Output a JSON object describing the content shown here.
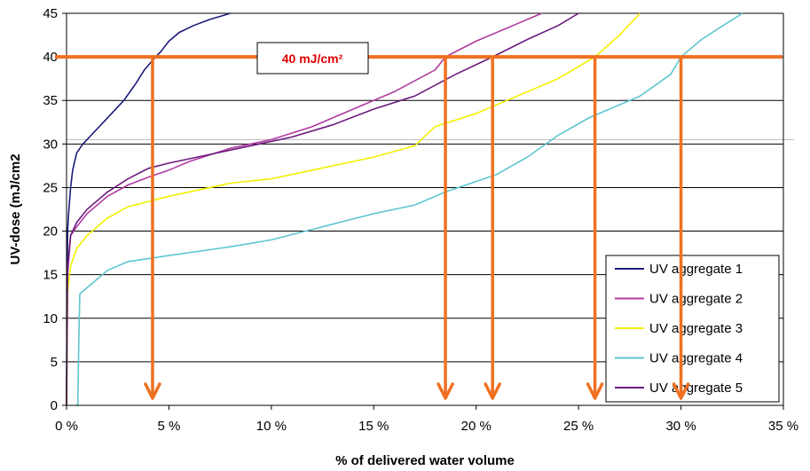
{
  "chart_data": {
    "type": "line",
    "xlabel": "% of delivered water volume",
    "ylabel": "UV-dose (mJ/cm2",
    "xlim": [
      0,
      35
    ],
    "ylim": [
      0,
      45
    ],
    "x_ticks": [
      0,
      5,
      10,
      15,
      20,
      25,
      30,
      35
    ],
    "x_tick_labels": [
      "0 %",
      "5 %",
      "10 %",
      "15 %",
      "20 %",
      "25 %",
      "30 %",
      "35 %"
    ],
    "y_ticks": [
      0,
      5,
      10,
      15,
      20,
      25,
      30,
      35,
      40,
      45
    ],
    "y_tick_labels": [
      "0",
      "5",
      "10",
      "15",
      "20",
      "25",
      "30",
      "35",
      "40",
      "45"
    ],
    "grid": "horizontal",
    "legend_position": "bottom-right",
    "series": [
      {
        "name": "UV aggregate 1",
        "color": "#1c1c7a",
        "points": [
          [
            0,
            0
          ],
          [
            0.02,
            12
          ],
          [
            0.05,
            20
          ],
          [
            0.1,
            22
          ],
          [
            0.2,
            25
          ],
          [
            0.3,
            27
          ],
          [
            0.5,
            29
          ],
          [
            0.8,
            30
          ],
          [
            1.2,
            31
          ],
          [
            2,
            33
          ],
          [
            2.8,
            35
          ],
          [
            3.4,
            37
          ],
          [
            3.8,
            38.5
          ],
          [
            4.2,
            39.6
          ],
          [
            4.6,
            40.6
          ],
          [
            5,
            41.8
          ],
          [
            5.5,
            42.8
          ],
          [
            6.2,
            43.6
          ],
          [
            7,
            44.3
          ],
          [
            8,
            45
          ]
        ]
      },
      {
        "name": "UV aggregate 2",
        "color": "#b03aa0",
        "points": [
          [
            0,
            0
          ],
          [
            0.05,
            15
          ],
          [
            0.2,
            19.5
          ],
          [
            0.5,
            20.5
          ],
          [
            1,
            22
          ],
          [
            2,
            24
          ],
          [
            3,
            25.3
          ],
          [
            4,
            26.2
          ],
          [
            5,
            27
          ],
          [
            6,
            28
          ],
          [
            8,
            29.5
          ],
          [
            10,
            30.5
          ],
          [
            12,
            32
          ],
          [
            14,
            34
          ],
          [
            16,
            36
          ],
          [
            18,
            38.5
          ],
          [
            18.5,
            40
          ],
          [
            20,
            41.8
          ],
          [
            22,
            43.8
          ],
          [
            23.2,
            45
          ]
        ]
      },
      {
        "name": "UV aggregate 3",
        "color": "#f2f000",
        "points": [
          [
            0,
            0
          ],
          [
            0.05,
            13
          ],
          [
            0.2,
            16
          ],
          [
            0.5,
            18
          ],
          [
            1,
            19.5
          ],
          [
            2,
            21.5
          ],
          [
            3,
            22.8
          ],
          [
            5,
            24
          ],
          [
            8,
            25.5
          ],
          [
            10,
            26
          ],
          [
            12,
            27
          ],
          [
            15,
            28.5
          ],
          [
            17,
            29.8
          ],
          [
            18,
            32
          ],
          [
            20,
            33.5
          ],
          [
            22,
            35.5
          ],
          [
            24,
            37.5
          ],
          [
            25.8,
            40
          ],
          [
            27,
            42.5
          ],
          [
            28,
            45
          ]
        ]
      },
      {
        "name": "UV aggregate 4",
        "color": "#5cc6d0",
        "points": [
          [
            0.45,
            0
          ],
          [
            0.55,
            0
          ],
          [
            0.6,
            8
          ],
          [
            0.65,
            12.8
          ],
          [
            1,
            13.5
          ],
          [
            2,
            15.5
          ],
          [
            3,
            16.5
          ],
          [
            5,
            17.2
          ],
          [
            8,
            18.2
          ],
          [
            10,
            19
          ],
          [
            12,
            20.2
          ],
          [
            15,
            22
          ],
          [
            17,
            23
          ],
          [
            18.5,
            24.5
          ],
          [
            21,
            26.5
          ],
          [
            22.5,
            28.5
          ],
          [
            24,
            31
          ],
          [
            25.5,
            33
          ],
          [
            28,
            35.5
          ],
          [
            29.5,
            38
          ],
          [
            30,
            40
          ],
          [
            31,
            42
          ],
          [
            32,
            43.5
          ],
          [
            33,
            45
          ]
        ]
      },
      {
        "name": "UV aggregate 5",
        "color": "#6a1a7e",
        "points": [
          [
            0,
            0
          ],
          [
            0.05,
            16
          ],
          [
            0.2,
            19.5
          ],
          [
            0.5,
            21
          ],
          [
            1,
            22.5
          ],
          [
            2,
            24.5
          ],
          [
            3,
            26
          ],
          [
            4,
            27.2
          ],
          [
            5,
            27.8
          ],
          [
            7,
            28.8
          ],
          [
            9,
            29.8
          ],
          [
            11,
            30.8
          ],
          [
            13,
            32.2
          ],
          [
            15,
            34
          ],
          [
            17,
            35.5
          ],
          [
            19,
            38
          ],
          [
            20.8,
            40
          ],
          [
            22.5,
            42
          ],
          [
            24,
            43.6
          ],
          [
            25,
            45
          ]
        ]
      }
    ],
    "annotation": {
      "label": "40 mJ/cm²",
      "threshold": 40,
      "line_color": "#f07020",
      "text_color": "#e00000",
      "arrow_x": [
        4.2,
        18.5,
        20.8,
        25.8,
        30
      ]
    }
  }
}
